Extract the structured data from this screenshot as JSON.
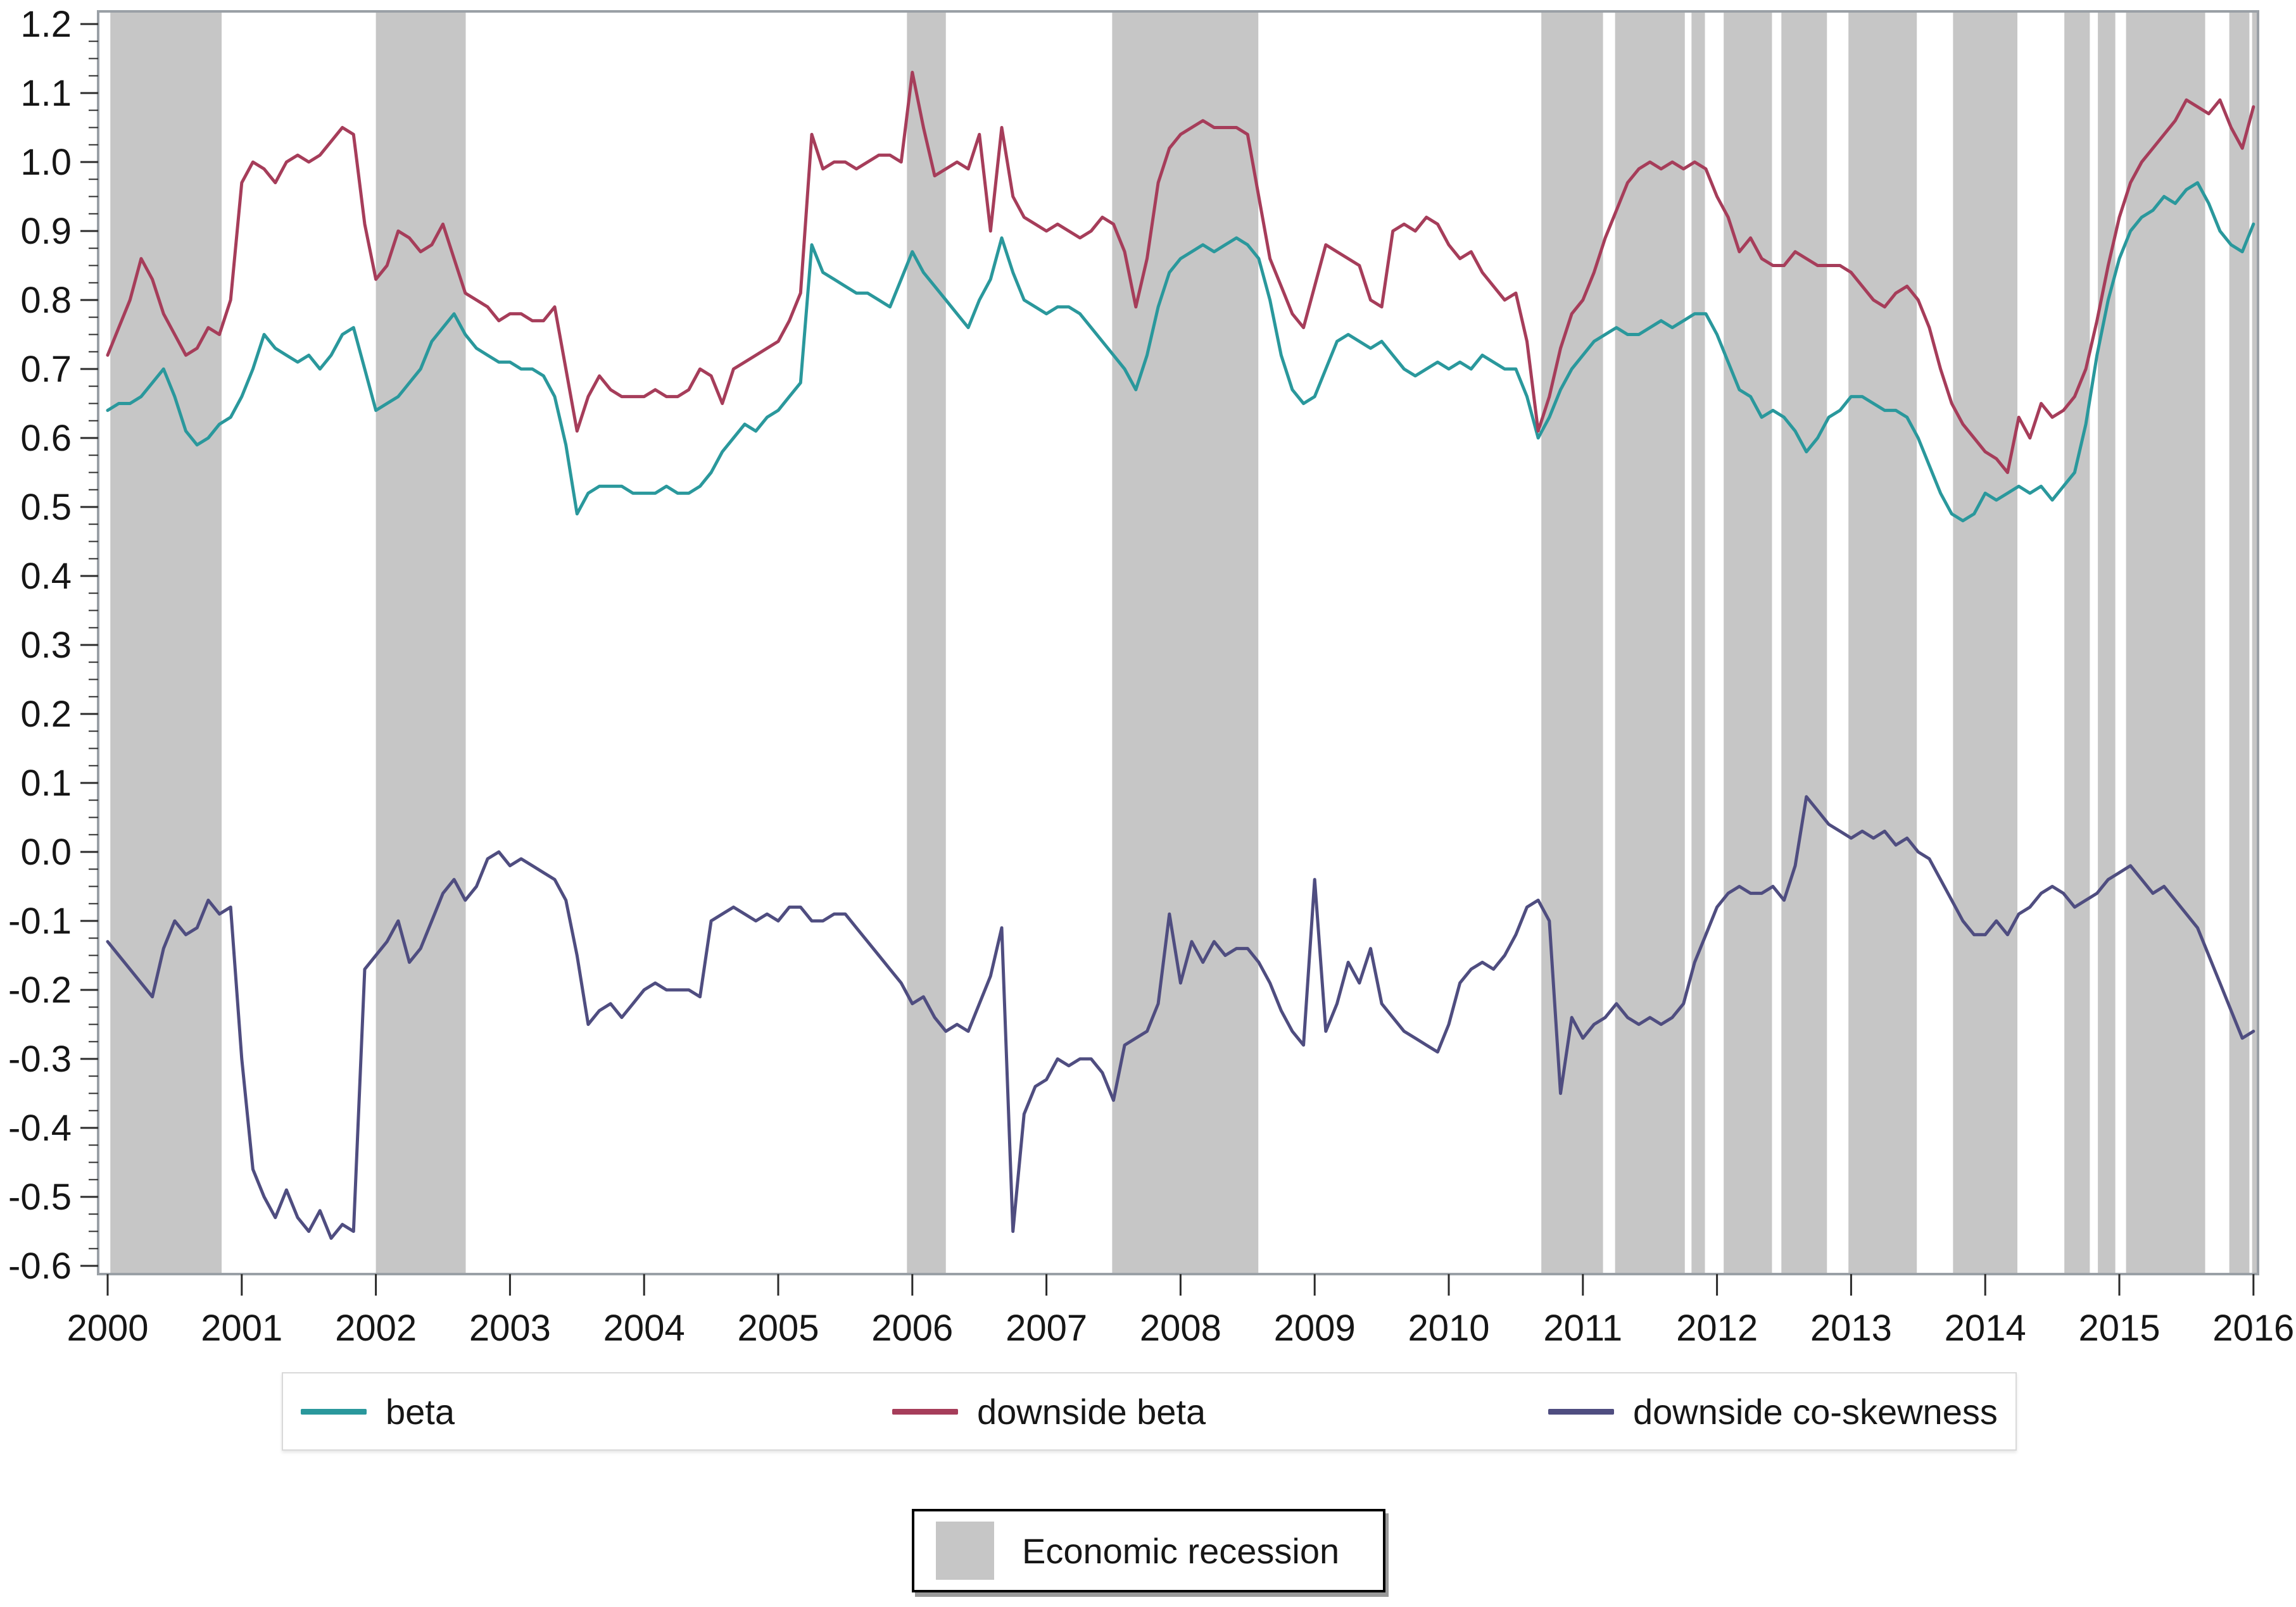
{
  "chart_data": {
    "type": "line",
    "title": "",
    "xlabel": "",
    "ylabel": "",
    "x_range": [
      2000,
      2016
    ],
    "y_range": [
      -0.6,
      1.2
    ],
    "x_tick_years": [
      2000,
      2001,
      2002,
      2003,
      2004,
      2005,
      2006,
      2007,
      2008,
      2009,
      2010,
      2011,
      2012,
      2013,
      2014,
      2015,
      2016
    ],
    "y_tick_labels": [
      "1.2",
      "1.1",
      "1.0",
      "0.9",
      "0.8",
      "0.7",
      "0.6",
      "0.5",
      "0.4",
      "0.3",
      "0.2",
      "0.1",
      "0.0",
      "-0.1",
      "-0.2",
      "-0.3",
      "-0.4",
      "-0.5",
      "-0.6"
    ],
    "y_tick_step": 0.1,
    "y_minor_tick_step": 0.025,
    "grid": false,
    "legend_position": "bottom",
    "x_start": 2000,
    "x_step": 0.0833333,
    "series": [
      {
        "name": "beta",
        "color": "#2a989c",
        "values": [
          0.64,
          0.65,
          0.65,
          0.66,
          0.68,
          0.7,
          0.66,
          0.61,
          0.59,
          0.6,
          0.62,
          0.63,
          0.66,
          0.7,
          0.75,
          0.73,
          0.72,
          0.71,
          0.72,
          0.7,
          0.72,
          0.75,
          0.76,
          0.7,
          0.64,
          0.65,
          0.66,
          0.68,
          0.7,
          0.74,
          0.76,
          0.78,
          0.75,
          0.73,
          0.72,
          0.71,
          0.71,
          0.7,
          0.7,
          0.69,
          0.66,
          0.59,
          0.49,
          0.52,
          0.53,
          0.53,
          0.53,
          0.52,
          0.52,
          0.52,
          0.53,
          0.52,
          0.52,
          0.53,
          0.55,
          0.58,
          0.6,
          0.62,
          0.61,
          0.63,
          0.64,
          0.66,
          0.68,
          0.88,
          0.84,
          0.83,
          0.82,
          0.81,
          0.81,
          0.8,
          0.79,
          0.83,
          0.87,
          0.84,
          0.82,
          0.8,
          0.78,
          0.76,
          0.8,
          0.83,
          0.89,
          0.84,
          0.8,
          0.79,
          0.78,
          0.79,
          0.79,
          0.78,
          0.76,
          0.74,
          0.72,
          0.7,
          0.67,
          0.72,
          0.79,
          0.84,
          0.86,
          0.87,
          0.88,
          0.87,
          0.88,
          0.89,
          0.88,
          0.86,
          0.8,
          0.72,
          0.67,
          0.65,
          0.66,
          0.7,
          0.74,
          0.75,
          0.74,
          0.73,
          0.74,
          0.72,
          0.7,
          0.69,
          0.7,
          0.71,
          0.7,
          0.71,
          0.7,
          0.72,
          0.71,
          0.7,
          0.7,
          0.66,
          0.6,
          0.63,
          0.67,
          0.7,
          0.72,
          0.74,
          0.75,
          0.76,
          0.75,
          0.75,
          0.76,
          0.77,
          0.76,
          0.77,
          0.78,
          0.78,
          0.75,
          0.71,
          0.67,
          0.66,
          0.63,
          0.64,
          0.63,
          0.61,
          0.58,
          0.6,
          0.63,
          0.64,
          0.66,
          0.66,
          0.65,
          0.64,
          0.64,
          0.63,
          0.6,
          0.56,
          0.52,
          0.49,
          0.48,
          0.49,
          0.52,
          0.51,
          0.52,
          0.53,
          0.52,
          0.53,
          0.51,
          0.53,
          0.55,
          0.62,
          0.72,
          0.8,
          0.86,
          0.9,
          0.92,
          0.93,
          0.95,
          0.94,
          0.96,
          0.97,
          0.94,
          0.9,
          0.88,
          0.87,
          0.91
        ]
      },
      {
        "name": "downside beta",
        "color": "#a63d5a",
        "values": [
          0.72,
          0.76,
          0.8,
          0.86,
          0.83,
          0.78,
          0.75,
          0.72,
          0.73,
          0.76,
          0.75,
          0.8,
          0.97,
          1.0,
          0.99,
          0.97,
          1.0,
          1.01,
          1.0,
          1.01,
          1.03,
          1.05,
          1.04,
          0.91,
          0.83,
          0.85,
          0.9,
          0.89,
          0.87,
          0.88,
          0.91,
          0.86,
          0.81,
          0.8,
          0.79,
          0.77,
          0.78,
          0.78,
          0.77,
          0.77,
          0.79,
          0.7,
          0.61,
          0.66,
          0.69,
          0.67,
          0.66,
          0.66,
          0.66,
          0.67,
          0.66,
          0.66,
          0.67,
          0.7,
          0.69,
          0.65,
          0.7,
          0.71,
          0.72,
          0.73,
          0.74,
          0.77,
          0.81,
          1.04,
          0.99,
          1.0,
          1.0,
          0.99,
          1.0,
          1.01,
          1.01,
          1.0,
          1.13,
          1.05,
          0.98,
          0.99,
          1.0,
          0.99,
          1.04,
          0.9,
          1.05,
          0.95,
          0.92,
          0.91,
          0.9,
          0.91,
          0.9,
          0.89,
          0.9,
          0.92,
          0.91,
          0.87,
          0.79,
          0.86,
          0.97,
          1.02,
          1.04,
          1.05,
          1.06,
          1.05,
          1.05,
          1.05,
          1.04,
          0.95,
          0.86,
          0.82,
          0.78,
          0.76,
          0.82,
          0.88,
          0.87,
          0.86,
          0.85,
          0.8,
          0.79,
          0.9,
          0.91,
          0.9,
          0.92,
          0.91,
          0.88,
          0.86,
          0.87,
          0.84,
          0.82,
          0.8,
          0.81,
          0.74,
          0.61,
          0.66,
          0.73,
          0.78,
          0.8,
          0.84,
          0.89,
          0.93,
          0.97,
          0.99,
          1.0,
          0.99,
          1.0,
          0.99,
          1.0,
          0.99,
          0.95,
          0.92,
          0.87,
          0.89,
          0.86,
          0.85,
          0.85,
          0.87,
          0.86,
          0.85,
          0.85,
          0.85,
          0.84,
          0.82,
          0.8,
          0.79,
          0.81,
          0.82,
          0.8,
          0.76,
          0.7,
          0.65,
          0.62,
          0.6,
          0.58,
          0.57,
          0.55,
          0.63,
          0.6,
          0.65,
          0.63,
          0.64,
          0.66,
          0.7,
          0.77,
          0.85,
          0.92,
          0.97,
          1.0,
          1.02,
          1.04,
          1.06,
          1.09,
          1.08,
          1.07,
          1.09,
          1.05,
          1.02,
          1.08
        ]
      },
      {
        "name": "downside co-skewness",
        "color": "#4f4d80",
        "values": [
          -0.13,
          -0.15,
          -0.17,
          -0.19,
          -0.21,
          -0.14,
          -0.1,
          -0.12,
          -0.11,
          -0.07,
          -0.09,
          -0.08,
          -0.3,
          -0.46,
          -0.5,
          -0.53,
          -0.49,
          -0.53,
          -0.55,
          -0.52,
          -0.56,
          -0.54,
          -0.55,
          -0.17,
          -0.15,
          -0.13,
          -0.1,
          -0.16,
          -0.14,
          -0.1,
          -0.06,
          -0.04,
          -0.07,
          -0.05,
          -0.01,
          0.0,
          -0.02,
          -0.01,
          -0.02,
          -0.03,
          -0.04,
          -0.07,
          -0.15,
          -0.25,
          -0.23,
          -0.22,
          -0.24,
          -0.22,
          -0.2,
          -0.19,
          -0.2,
          -0.2,
          -0.2,
          -0.21,
          -0.1,
          -0.09,
          -0.08,
          -0.09,
          -0.1,
          -0.09,
          -0.1,
          -0.08,
          -0.08,
          -0.1,
          -0.1,
          -0.09,
          -0.09,
          -0.11,
          -0.13,
          -0.15,
          -0.17,
          -0.19,
          -0.22,
          -0.21,
          -0.24,
          -0.26,
          -0.25,
          -0.26,
          -0.22,
          -0.18,
          -0.11,
          -0.55,
          -0.38,
          -0.34,
          -0.33,
          -0.3,
          -0.31,
          -0.3,
          -0.3,
          -0.32,
          -0.36,
          -0.28,
          -0.27,
          -0.26,
          -0.22,
          -0.09,
          -0.19,
          -0.13,
          -0.16,
          -0.13,
          -0.15,
          -0.14,
          -0.14,
          -0.16,
          -0.19,
          -0.23,
          -0.26,
          -0.28,
          -0.04,
          -0.26,
          -0.22,
          -0.16,
          -0.19,
          -0.14,
          -0.22,
          -0.24,
          -0.26,
          -0.27,
          -0.28,
          -0.29,
          -0.25,
          -0.19,
          -0.17,
          -0.16,
          -0.17,
          -0.15,
          -0.12,
          -0.08,
          -0.07,
          -0.1,
          -0.35,
          -0.24,
          -0.27,
          -0.25,
          -0.24,
          -0.22,
          -0.24,
          -0.25,
          -0.24,
          -0.25,
          -0.24,
          -0.22,
          -0.16,
          -0.12,
          -0.08,
          -0.06,
          -0.05,
          -0.06,
          -0.06,
          -0.05,
          -0.07,
          -0.02,
          0.08,
          0.06,
          0.04,
          0.03,
          0.02,
          0.03,
          0.02,
          0.03,
          0.01,
          0.02,
          0.0,
          -0.01,
          -0.04,
          -0.07,
          -0.1,
          -0.12,
          -0.12,
          -0.1,
          -0.12,
          -0.09,
          -0.08,
          -0.06,
          -0.05,
          -0.06,
          -0.08,
          -0.07,
          -0.06,
          -0.04,
          -0.03,
          -0.02,
          -0.04,
          -0.06,
          -0.05,
          -0.07,
          -0.09,
          -0.11,
          -0.15,
          -0.19,
          -0.23,
          -0.27,
          -0.26
        ]
      }
    ],
    "recession_legend": "Economic recession",
    "recession_color": "#c6c6c6",
    "recession_bands": [
      [
        2000.02,
        2000.85
      ],
      [
        2002.0,
        2002.67
      ],
      [
        2005.96,
        2006.25
      ],
      [
        2007.49,
        2008.58
      ],
      [
        2010.69,
        2011.15
      ],
      [
        2011.24,
        2011.76
      ],
      [
        2011.81,
        2011.91
      ],
      [
        2012.05,
        2012.41
      ],
      [
        2012.48,
        2012.82
      ],
      [
        2012.98,
        2013.49
      ],
      [
        2013.76,
        2014.24
      ],
      [
        2014.59,
        2014.78
      ],
      [
        2014.84,
        2014.97
      ],
      [
        2015.05,
        2015.64
      ],
      [
        2015.82,
        2015.97
      ],
      [
        2015.99,
        2016.06
      ]
    ]
  },
  "colors": {
    "background": "#ffffff",
    "frame": "#9aa0a6",
    "tick": "#2b2b2b",
    "label": "#161616"
  }
}
